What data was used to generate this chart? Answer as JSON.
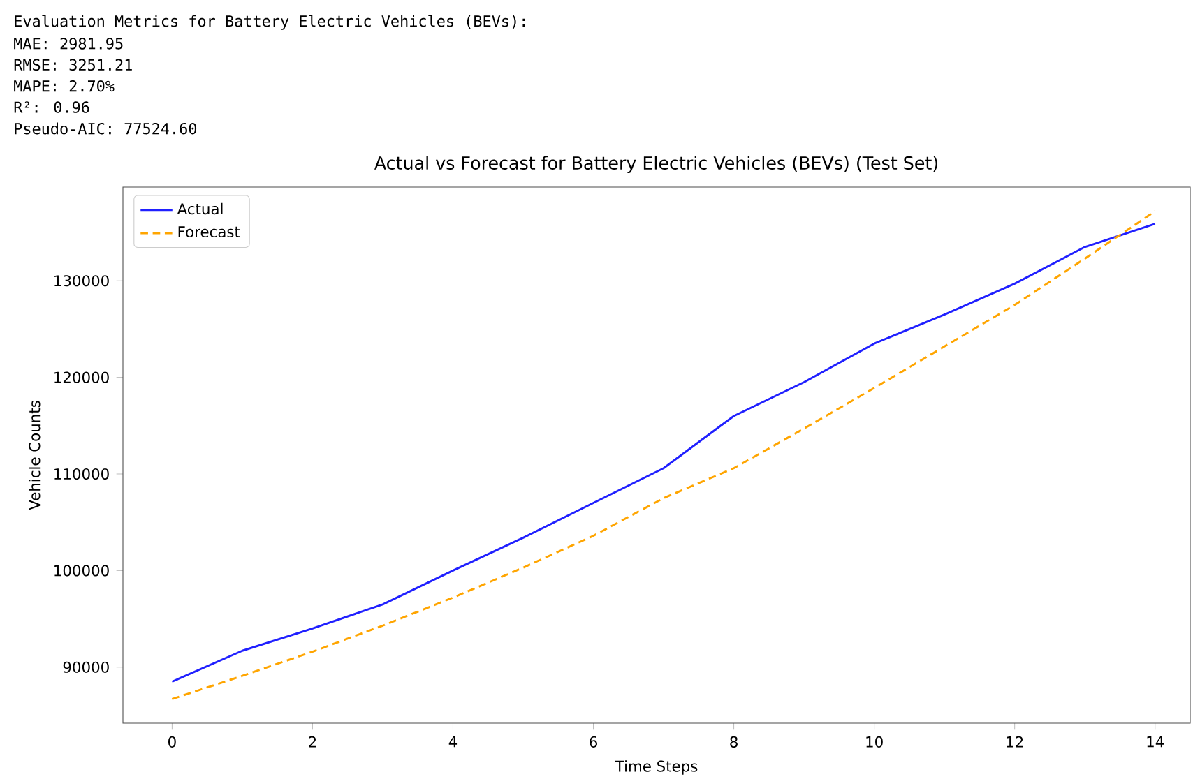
{
  "chart_data": {
    "type": "line",
    "title": "Actual vs Forecast for Battery Electric Vehicles (BEVs) (Test Set)",
    "xlabel": "Time Steps",
    "ylabel": "Vehicle Counts",
    "annotations": [
      "Evaluation Metrics for Battery Electric Vehicles (BEVs):",
      "MAE: 2981.95",
      "RMSE: 3251.21",
      "MAPE: 2.70%",
      "R²: 0.96",
      "Pseudo-AIC: 77524.60"
    ],
    "x": [
      0,
      1,
      2,
      3,
      4,
      5,
      6,
      7,
      8,
      9,
      10,
      11,
      12,
      13,
      14
    ],
    "series": [
      {
        "name": "Actual",
        "color": "#2020ff",
        "line_style": "solid",
        "values": [
          88500,
          91700,
          94000,
          96500,
          100000,
          103400,
          107000,
          110600,
          116000,
          119500,
          123500,
          126500,
          129700,
          133500,
          135900
        ]
      },
      {
        "name": "Forecast",
        "color": "#ffa500",
        "line_style": "dashed",
        "values": [
          86700,
          89100,
          91600,
          94300,
          97200,
          100300,
          103600,
          107500,
          110600,
          114700,
          118900,
          123200,
          127500,
          132300,
          137200
        ]
      }
    ],
    "xlim": [
      -0.7,
      14.5
    ],
    "ylim": [
      84200,
      139700
    ],
    "xticks": [
      0,
      2,
      4,
      6,
      8,
      10,
      12,
      14
    ],
    "yticks": [
      90000,
      100000,
      110000,
      120000,
      130000
    ],
    "legend": "top left",
    "grid": false
  }
}
